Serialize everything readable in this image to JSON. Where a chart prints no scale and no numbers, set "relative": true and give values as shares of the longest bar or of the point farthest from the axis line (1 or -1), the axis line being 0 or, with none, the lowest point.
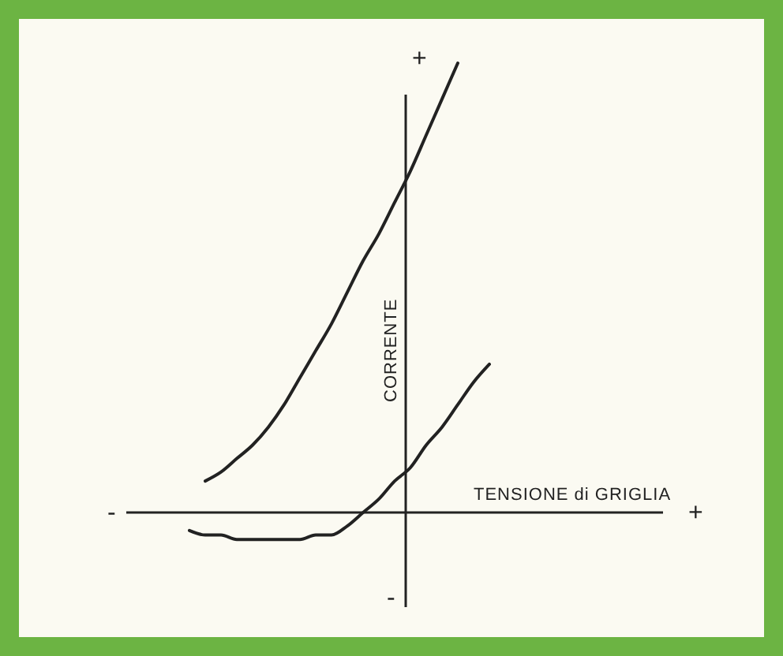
{
  "chart_data": {
    "type": "line",
    "relative": true,
    "xlabel": "TENSIONE di GRIGLIA",
    "ylabel": "CORRENTE",
    "line_style": "solid",
    "categories": [
      null,
      null,
      null,
      null,
      null,
      null,
      null,
      null,
      null,
      null,
      null,
      null,
      null,
      null,
      null,
      null,
      null,
      null,
      null,
      null,
      null,
      null,
      null,
      null,
      null,
      null,
      null,
      null,
      null,
      null,
      null,
      null,
      null,
      null,
      null
    ],
    "annotations": [
      "+",
      "-",
      "-",
      "+"
    ],
    "series": [
      {
        "color": "#222222",
        "values": [
          null,
          null,
          null,
          null,
          null,
          0.07,
          0.09,
          0.12,
          0.15,
          0.19,
          0.24,
          0.3,
          0.36,
          0.42,
          0.49,
          0.56,
          0.62,
          0.69,
          0.76,
          0.84,
          0.92,
          1,
          null,
          null,
          null,
          null,
          null,
          null,
          null,
          null,
          null,
          null,
          null,
          null,
          null
        ]
      },
      {
        "color": "#222222",
        "values": [
          null,
          null,
          null,
          null,
          -0.04,
          -0.05,
          -0.05,
          -0.06,
          -0.06,
          -0.06,
          -0.06,
          -0.06,
          -0.05,
          -0.05,
          -0.03,
          0,
          0.03,
          0.07,
          0.1,
          0.15,
          0.19,
          0.24,
          0.29,
          0.33,
          null,
          null,
          null,
          null,
          null,
          null,
          null,
          null,
          null,
          null,
          null
        ]
      }
    ]
  }
}
